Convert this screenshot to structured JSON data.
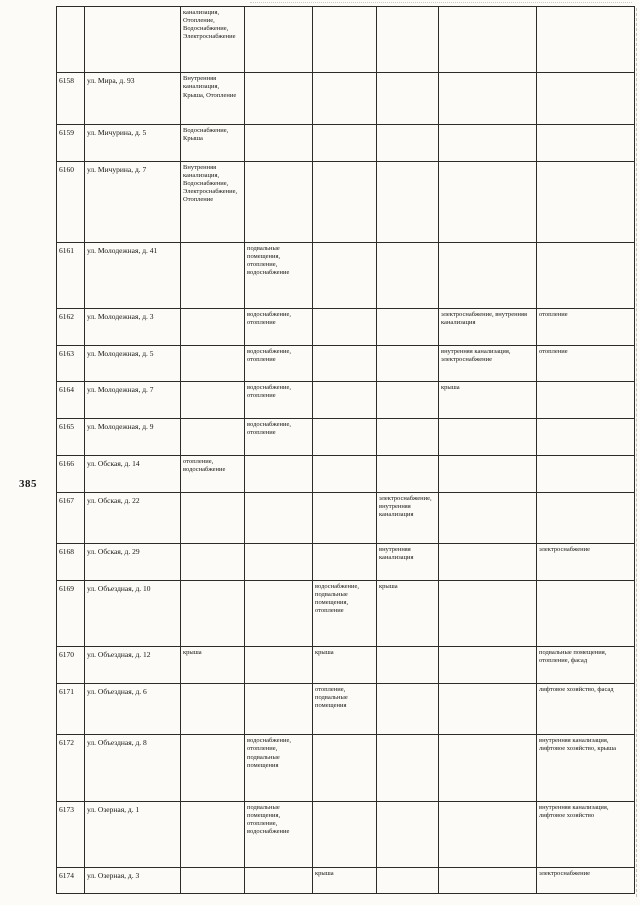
{
  "page": {
    "number": "385"
  },
  "table": {
    "work_column_keys": [
      "c3",
      "c4",
      "c5",
      "c6",
      "c7",
      "c8"
    ],
    "rows": [
      {
        "num": "",
        "addr": "",
        "cells": {
          "c3": "канализация, Отопление, Водоснабжение, Электроснабжение"
        }
      },
      {
        "num": "6158",
        "addr": "ул. Мира, д. 93",
        "cells": {
          "c3": "Внутренняя канализация, Крыша, Отопление"
        }
      },
      {
        "num": "6159",
        "addr": "ул. Мичурина, д. 5",
        "cells": {
          "c3": "Водоснабжение, Крыша"
        }
      },
      {
        "num": "6160",
        "addr": "ул. Мичурина, д. 7",
        "cells": {
          "c3": "Внутренняя канализация, Водоснабжение, Электроснабжение, Отопление"
        }
      },
      {
        "num": "6161",
        "addr": "ул. Молодежная, д. 41",
        "cells": {
          "c4": "подвальные помещения, отопление, водоснабжение"
        }
      },
      {
        "num": "6162",
        "addr": "ул. Молодежная, д. 3",
        "cells": {
          "c4": "водоснабжение, отопление",
          "c7": "электроснабжение, внутренняя канализация",
          "c8": "отопление"
        }
      },
      {
        "num": "6163",
        "addr": "ул. Молодежная, д. 5",
        "cells": {
          "c4": "водоснабжение, отопление",
          "c7": "внутренняя канализация, электроснабжение",
          "c8": "отопление"
        }
      },
      {
        "num": "6164",
        "addr": "ул. Молодежная, д. 7",
        "cells": {
          "c4": "водоснабжение, отопление",
          "c7": "крыша"
        }
      },
      {
        "num": "6165",
        "addr": "ул. Молодежная, д. 9",
        "cells": {
          "c4": "водоснабжение, отопление"
        }
      },
      {
        "num": "6166",
        "addr": "ул. Обская, д. 14",
        "cells": {
          "c3": "отопление, водоснабжение"
        }
      },
      {
        "num": "6167",
        "addr": "ул. Обская, д. 22",
        "cells": {
          "c6": "электроснабжение, внутренняя канализация"
        }
      },
      {
        "num": "6168",
        "addr": "ул. Обская, д. 29",
        "cells": {
          "c6": "внутренняя канализация",
          "c8": "электроснабжение"
        }
      },
      {
        "num": "6169",
        "addr": "ул. Объездная, д. 10",
        "cells": {
          "c5": "водоснабжение, подвальные помещения, отопление",
          "c6": "крыша"
        }
      },
      {
        "num": "6170",
        "addr": "ул. Объездная, д. 12",
        "cells": {
          "c3": "крыша",
          "c5": "крыша",
          "c8": "подвальные помещения, отопление, фасад"
        }
      },
      {
        "num": "6171",
        "addr": "ул. Объездная, д. 6",
        "cells": {
          "c5": "отопление, подвальные помещения",
          "c8": "лифтовое хозяйство, фасад"
        }
      },
      {
        "num": "6172",
        "addr": "ул. Объездная, д. 8",
        "cells": {
          "c4": "водоснабжение, отопление, подвальные помещения",
          "c8": "внутренняя канализация, лифтовое хозяйство, крыша"
        }
      },
      {
        "num": "6173",
        "addr": "ул. Озерная, д. 1",
        "cells": {
          "c4": "подвальные помещения, отопление, водоснабжение",
          "c8": "внутренняя канализация, лифтовое хозяйство"
        }
      },
      {
        "num": "6174",
        "addr": "ул. Озерная, д. 3",
        "cells": {
          "c5": "крыша",
          "c8": "электроснабжение"
        }
      }
    ]
  }
}
